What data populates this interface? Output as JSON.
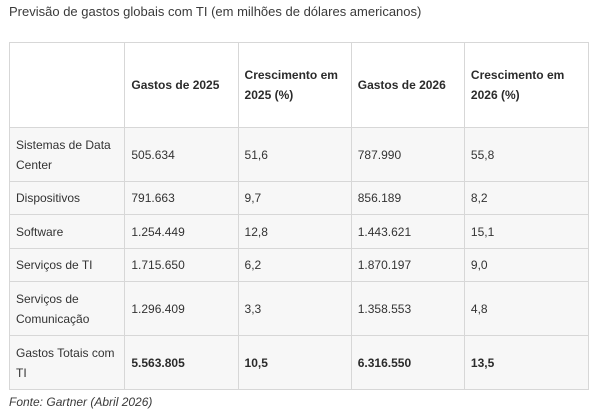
{
  "title": "Previsão de gastos globais com TI (em milhões de dólares americanos)",
  "table": {
    "headers": [
      "",
      "Gastos de 2025",
      "Crescimento em 2025 (%)",
      "Gastos de 2026",
      "Crescimento em 2026 (%)"
    ],
    "rows": [
      {
        "category": "Sistemas de Data Center",
        "spend_2025": "505.634",
        "growth_2025": "51,6",
        "spend_2026": "787.990",
        "growth_2026": "55,8"
      },
      {
        "category": "Dispositivos",
        "spend_2025": "791.663",
        "growth_2025": "9,7",
        "spend_2026": "856.189",
        "growth_2026": "8,2"
      },
      {
        "category": "Software",
        "spend_2025": "1.254.449",
        "growth_2025": "12,8",
        "spend_2026": "1.443.621",
        "growth_2026": "15,1"
      },
      {
        "category": "Serviços de TI",
        "spend_2025": "1.715.650",
        "growth_2025": "6,2",
        "spend_2026": "1.870.197",
        "growth_2026": "9,0"
      },
      {
        "category": "Serviços de Comunicação",
        "spend_2025": "1.296.409",
        "growth_2025": "3,3",
        "spend_2026": "1.358.553",
        "growth_2026": "4,8"
      },
      {
        "category": "Gastos Totais com TI",
        "spend_2025": "5.563.805",
        "growth_2025": "10,5",
        "spend_2026": "6.316.550",
        "growth_2026": "13,5"
      }
    ]
  },
  "source": "Fonte: Gartner (Abril 2026)"
}
